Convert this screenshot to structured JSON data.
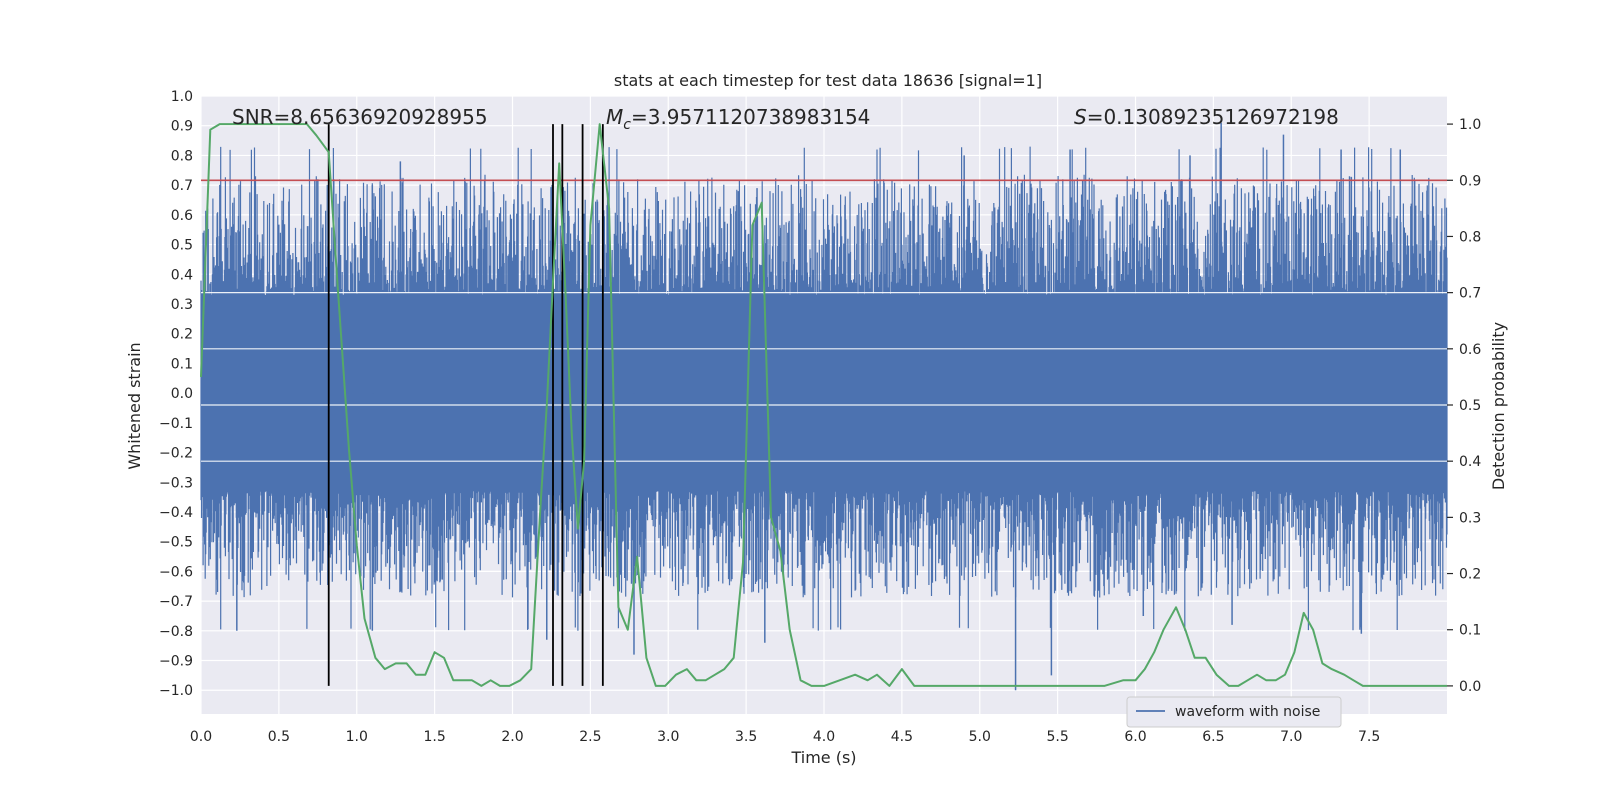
{
  "chart_data": {
    "type": "line",
    "title": "stats at each timestep for test data 18636 [signal=1]",
    "xlabel": "Time (s)",
    "ylabel_left": "Whitened strain",
    "ylabel_right": "Detection probability",
    "xlim": [
      0.0,
      8.0
    ],
    "ylim_left": [
      -1.08,
      1.0
    ],
    "ylim_right": [
      -0.05,
      1.05
    ],
    "x_ticks": [
      0.0,
      0.5,
      1.0,
      1.5,
      2.0,
      2.5,
      3.0,
      3.5,
      4.0,
      4.5,
      5.0,
      5.5,
      6.0,
      6.5,
      7.0,
      7.5
    ],
    "x_tick_labels": [
      "0.0",
      "0.5",
      "1.0",
      "1.5",
      "2.0",
      "2.5",
      "3.0",
      "3.5",
      "4.0",
      "4.5",
      "5.0",
      "5.5",
      "6.0",
      "6.5",
      "7.0",
      "7.5"
    ],
    "y_left_ticks": [
      1.0,
      0.9,
      0.8,
      0.7,
      0.6,
      0.5,
      0.4,
      0.3,
      0.2,
      0.1,
      0.0,
      -0.1,
      -0.2,
      -0.3,
      -0.4,
      -0.5,
      -0.6,
      -0.7,
      -0.8,
      -0.9,
      -1.0
    ],
    "y_left_tick_labels": [
      "1.0",
      "0.9",
      "0.8",
      "0.7",
      "0.6",
      "0.5",
      "0.4",
      "0.3",
      "0.2",
      "0.1",
      "0.0",
      "−0.1",
      "−0.2",
      "−0.3",
      "−0.4",
      "−0.5",
      "−0.6",
      "−0.7",
      "−0.8",
      "−0.9",
      "−1.0"
    ],
    "y_right_ticks": [
      1.0,
      0.9,
      0.8,
      0.7,
      0.6,
      0.5,
      0.4,
      0.3,
      0.2,
      0.1,
      0.0
    ],
    "y_right_tick_labels": [
      "1.0",
      "0.9",
      "0.8",
      "0.7",
      "0.6",
      "0.5",
      "0.4",
      "0.3",
      "0.2",
      "0.1",
      "0.0"
    ],
    "annotations": {
      "snr": "SNR=8.65636920928955",
      "mc_symbol": "M",
      "mc_sub": "c",
      "mc_value": "=3.9571120738983154",
      "s_symbol": "S",
      "s_value": "=0.13089235126972198"
    },
    "legend": {
      "label": "waveform with noise",
      "location": "lower-right"
    },
    "threshold": {
      "value": 0.9,
      "axis": "right",
      "color": "#c44e52"
    },
    "vertical_markers_s": [
      0.82,
      2.26,
      2.32,
      2.45,
      2.58
    ],
    "strain_series": {
      "name": "waveform with noise",
      "color": "#4c72b0",
      "dense_band": [
        -0.33,
        0.33
      ],
      "envelope": [
        0.55,
        -0.5
      ],
      "spikes": [
        {
          "t": 0.23,
          "v": -0.8
        },
        {
          "t": 1.28,
          "v": 0.78
        },
        {
          "t": 1.1,
          "v": -0.8
        },
        {
          "t": 2.22,
          "v": -0.83
        },
        {
          "t": 2.58,
          "v": 0.84
        },
        {
          "t": 2.78,
          "v": -0.88
        },
        {
          "t": 3.57,
          "v": 0.69
        },
        {
          "t": 3.62,
          "v": -0.84
        },
        {
          "t": 4.9,
          "v": 0.8
        },
        {
          "t": 5.23,
          "v": -1.0
        },
        {
          "t": 5.46,
          "v": -0.95
        },
        {
          "t": 5.58,
          "v": 0.82
        },
        {
          "t": 6.55,
          "v": 0.91
        },
        {
          "t": 6.62,
          "v": -0.78
        },
        {
          "t": 6.95,
          "v": 0.87
        },
        {
          "t": 7.32,
          "v": 0.82
        },
        {
          "t": 7.45,
          "v": -0.81
        },
        {
          "t": 7.7,
          "v": 0.82
        },
        {
          "t": 1.1,
          "v": 0.7
        },
        {
          "t": 0.75,
          "v": 0.72
        },
        {
          "t": 3.45,
          "v": 0.68
        },
        {
          "t": 6.05,
          "v": -0.75
        },
        {
          "t": 6.35,
          "v": 0.8
        }
      ]
    },
    "probability_series": {
      "name": "detection probability",
      "color": "#55a868",
      "x": [
        0.0,
        0.06,
        0.12,
        0.2,
        0.3,
        0.4,
        0.5,
        0.6,
        0.68,
        0.74,
        0.82,
        0.88,
        0.95,
        1.0,
        1.05,
        1.12,
        1.18,
        1.25,
        1.32,
        1.38,
        1.44,
        1.5,
        1.56,
        1.62,
        1.68,
        1.74,
        1.8,
        1.86,
        1.92,
        1.98,
        2.05,
        2.12,
        2.18,
        2.22,
        2.26,
        2.3,
        2.34,
        2.38,
        2.42,
        2.46,
        2.5,
        2.56,
        2.62,
        2.68,
        2.74,
        2.8,
        2.86,
        2.92,
        2.98,
        3.05,
        3.12,
        3.18,
        3.24,
        3.3,
        3.36,
        3.42,
        3.48,
        3.54,
        3.6,
        3.66,
        3.72,
        3.78,
        3.85,
        3.92,
        4.0,
        4.1,
        4.2,
        4.28,
        4.34,
        4.42,
        4.5,
        4.58,
        4.7,
        4.85,
        5.0,
        5.2,
        5.4,
        5.6,
        5.8,
        5.92,
        6.0,
        6.06,
        6.12,
        6.18,
        6.26,
        6.32,
        6.38,
        6.45,
        6.52,
        6.6,
        6.66,
        6.72,
        6.78,
        6.84,
        6.9,
        6.96,
        7.02,
        7.08,
        7.14,
        7.2,
        7.26,
        7.34,
        7.4,
        7.46,
        7.54,
        7.6,
        7.7,
        7.8,
        7.9,
        8.0
      ],
      "y": [
        0.55,
        0.99,
        1.0,
        1.0,
        1.0,
        1.0,
        1.0,
        1.0,
        1.0,
        0.98,
        0.95,
        0.7,
        0.42,
        0.25,
        0.12,
        0.05,
        0.03,
        0.04,
        0.04,
        0.02,
        0.02,
        0.06,
        0.05,
        0.01,
        0.01,
        0.01,
        0.0,
        0.01,
        0.0,
        0.0,
        0.01,
        0.03,
        0.32,
        0.5,
        0.72,
        0.93,
        0.7,
        0.45,
        0.28,
        0.4,
        0.82,
        1.0,
        0.85,
        0.14,
        0.1,
        0.23,
        0.05,
        0.0,
        0.0,
        0.02,
        0.03,
        0.01,
        0.01,
        0.02,
        0.03,
        0.05,
        0.22,
        0.82,
        0.86,
        0.3,
        0.24,
        0.1,
        0.01,
        0.0,
        0.0,
        0.01,
        0.02,
        0.01,
        0.02,
        0.0,
        0.03,
        0.0,
        0.0,
        0.0,
        0.0,
        0.0,
        0.0,
        0.0,
        0.0,
        0.01,
        0.01,
        0.03,
        0.06,
        0.1,
        0.14,
        0.1,
        0.05,
        0.05,
        0.02,
        0.0,
        0.0,
        0.01,
        0.02,
        0.01,
        0.01,
        0.02,
        0.06,
        0.13,
        0.1,
        0.04,
        0.03,
        0.02,
        0.01,
        0.0,
        0.0,
        0.0,
        0.0,
        0.0,
        0.0,
        0.0
      ]
    }
  }
}
